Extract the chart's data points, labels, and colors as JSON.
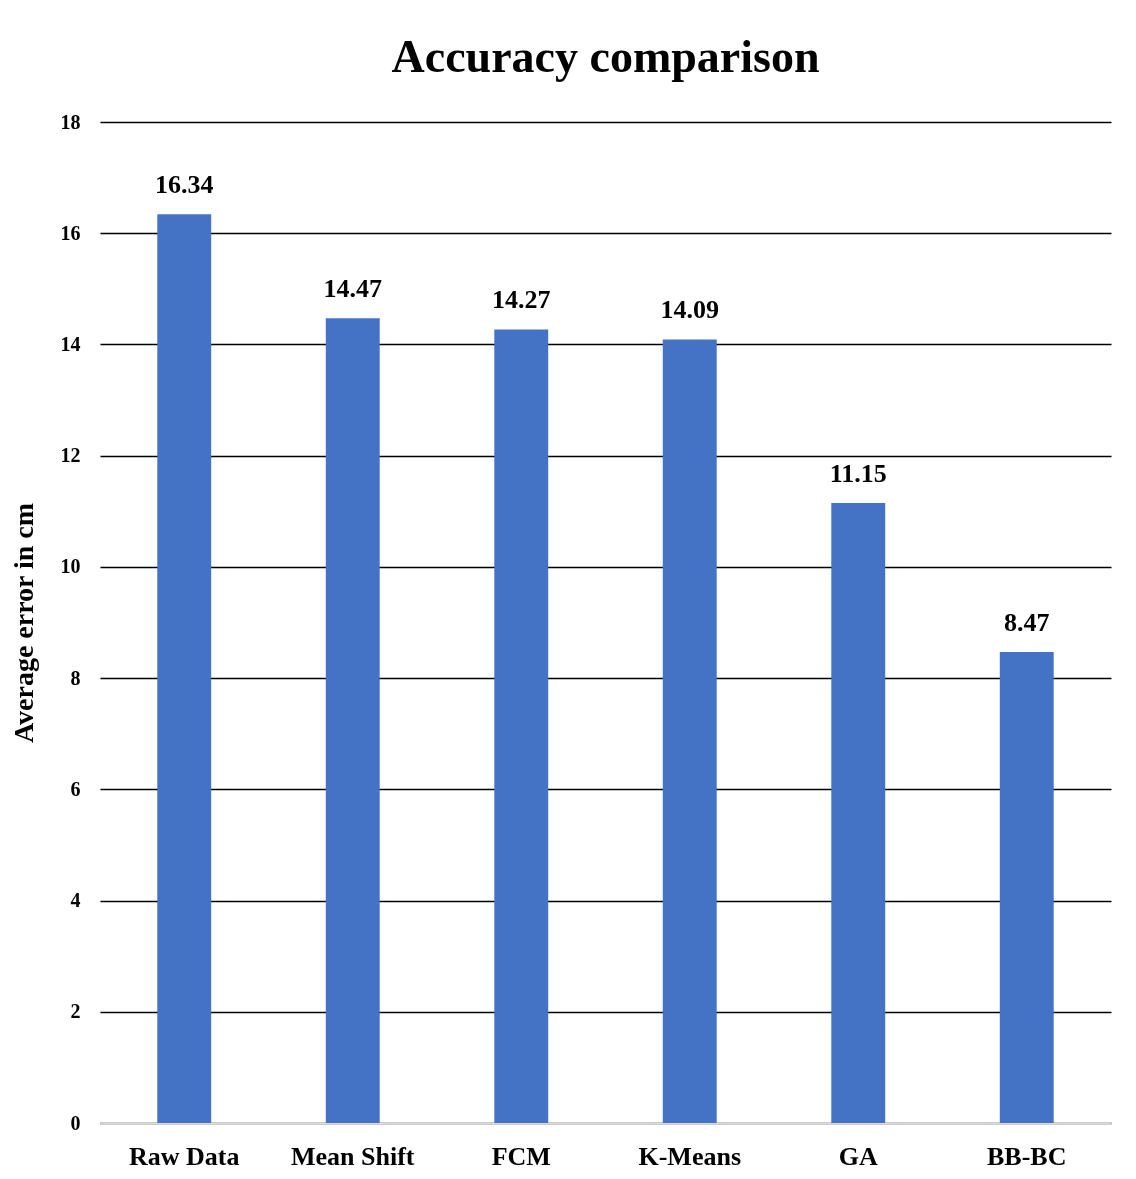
{
  "chart_data": {
    "type": "bar",
    "title": "Accuracy comparison",
    "ylabel": "Average error in cm",
    "categories": [
      "Raw Data",
      "Mean Shift",
      "FCM",
      "K-Means",
      "GA",
      "BB-BC"
    ],
    "values": [
      16.34,
      14.47,
      14.27,
      14.09,
      11.15,
      8.47
    ],
    "color": "#4472c4",
    "ylim": [
      0,
      18
    ],
    "yticks": [
      0,
      2,
      4,
      6,
      8,
      10,
      12,
      14,
      16,
      18
    ],
    "grid": "y",
    "data_labels": true
  }
}
